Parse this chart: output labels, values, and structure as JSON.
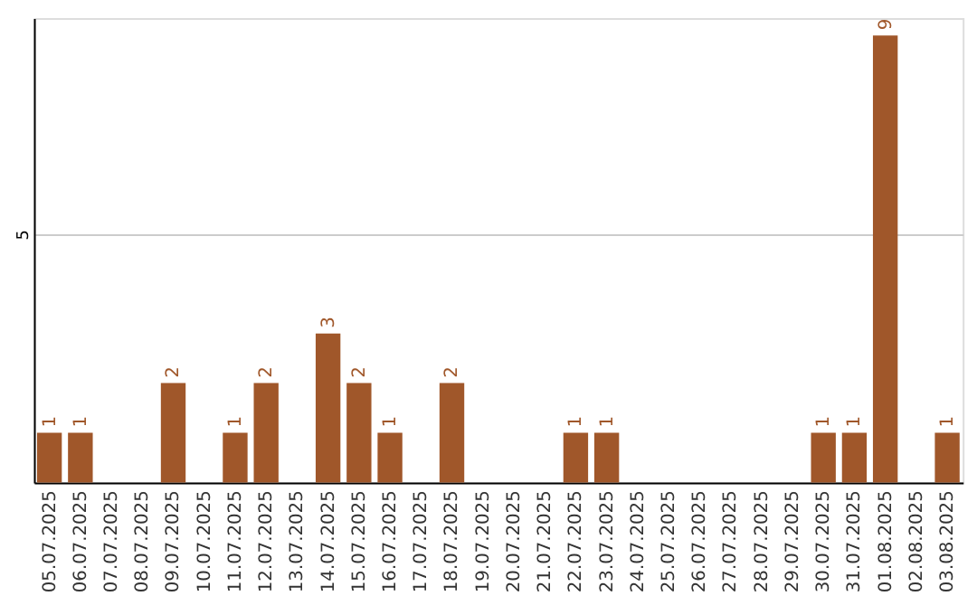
{
  "chart_data": {
    "type": "bar",
    "categories": [
      "05.07.2025",
      "06.07.2025",
      "07.07.2025",
      "08.07.2025",
      "09.07.2025",
      "10.07.2025",
      "11.07.2025",
      "12.07.2025",
      "13.07.2025",
      "14.07.2025",
      "15.07.2025",
      "16.07.2025",
      "17.07.2025",
      "18.07.2025",
      "19.07.2025",
      "20.07.2025",
      "21.07.2025",
      "22.07.2025",
      "23.07.2025",
      "24.07.2025",
      "25.07.2025",
      "26.07.2025",
      "27.07.2025",
      "28.07.2025",
      "29.07.2025",
      "30.07.2025",
      "31.07.2025",
      "01.08.2025",
      "02.08.2025",
      "03.08.2025"
    ],
    "values": [
      1,
      1,
      0,
      0,
      2,
      0,
      1,
      2,
      0,
      3,
      2,
      1,
      0,
      2,
      0,
      0,
      0,
      1,
      1,
      0,
      0,
      0,
      0,
      0,
      0,
      1,
      1,
      9,
      0,
      1
    ],
    "value_labels": [
      "1",
      "1",
      null,
      null,
      "2",
      null,
      "1",
      "2",
      null,
      "3",
      "2",
      "1",
      null,
      "2",
      null,
      null,
      null,
      "1",
      "1",
      null,
      null,
      null,
      null,
      null,
      null,
      "1",
      "1",
      "9",
      null,
      "1"
    ],
    "color": "#a0572a",
    "ylim": [
      0,
      9.35
    ],
    "yticks": [
      5
    ],
    "grid": "y"
  }
}
